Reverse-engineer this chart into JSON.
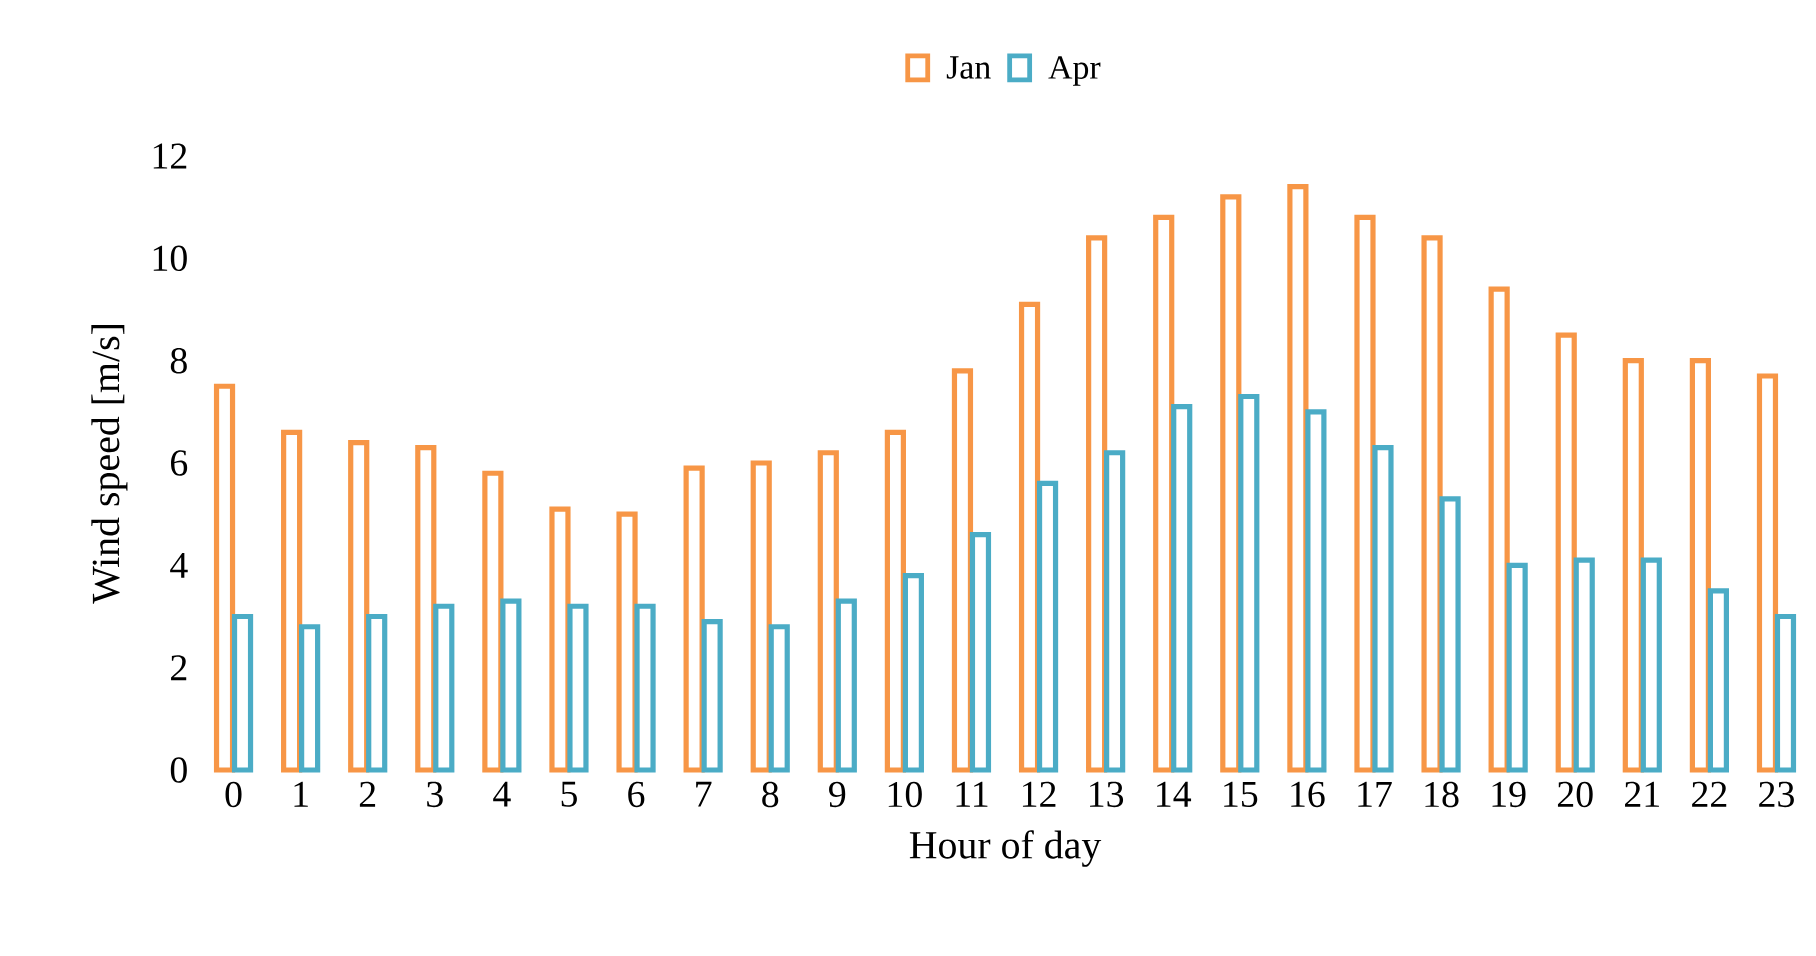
{
  "chart_data": {
    "type": "bar",
    "xlabel": "Hour of day",
    "ylabel": "Wind speed [m/s]",
    "categories": [
      "0",
      "1",
      "2",
      "3",
      "4",
      "5",
      "6",
      "7",
      "8",
      "9",
      "10",
      "11",
      "12",
      "13",
      "14",
      "15",
      "16",
      "17",
      "18",
      "19",
      "20",
      "21",
      "22",
      "23"
    ],
    "series": [
      {
        "name": "Jan",
        "color": "#f79646",
        "values": [
          7.5,
          6.6,
          6.4,
          6.3,
          5.8,
          5.1,
          5.0,
          5.9,
          6.0,
          6.2,
          6.6,
          7.8,
          9.1,
          10.4,
          10.8,
          11.2,
          11.4,
          10.8,
          10.4,
          9.4,
          8.5,
          8.0,
          8.0,
          7.7
        ]
      },
      {
        "name": "Apr",
        "color": "#4bacc6",
        "values": [
          3.0,
          2.8,
          3.0,
          3.2,
          3.3,
          3.2,
          3.2,
          2.9,
          2.8,
          3.3,
          3.8,
          4.6,
          5.6,
          6.2,
          7.1,
          7.3,
          7.0,
          6.3,
          5.3,
          4.0,
          4.1,
          4.1,
          3.5,
          3.0
        ]
      }
    ],
    "ylim": [
      0,
      12
    ],
    "yticks": [
      0,
      2,
      4,
      6,
      8,
      10,
      12
    ],
    "grid": false,
    "legend": "top"
  }
}
